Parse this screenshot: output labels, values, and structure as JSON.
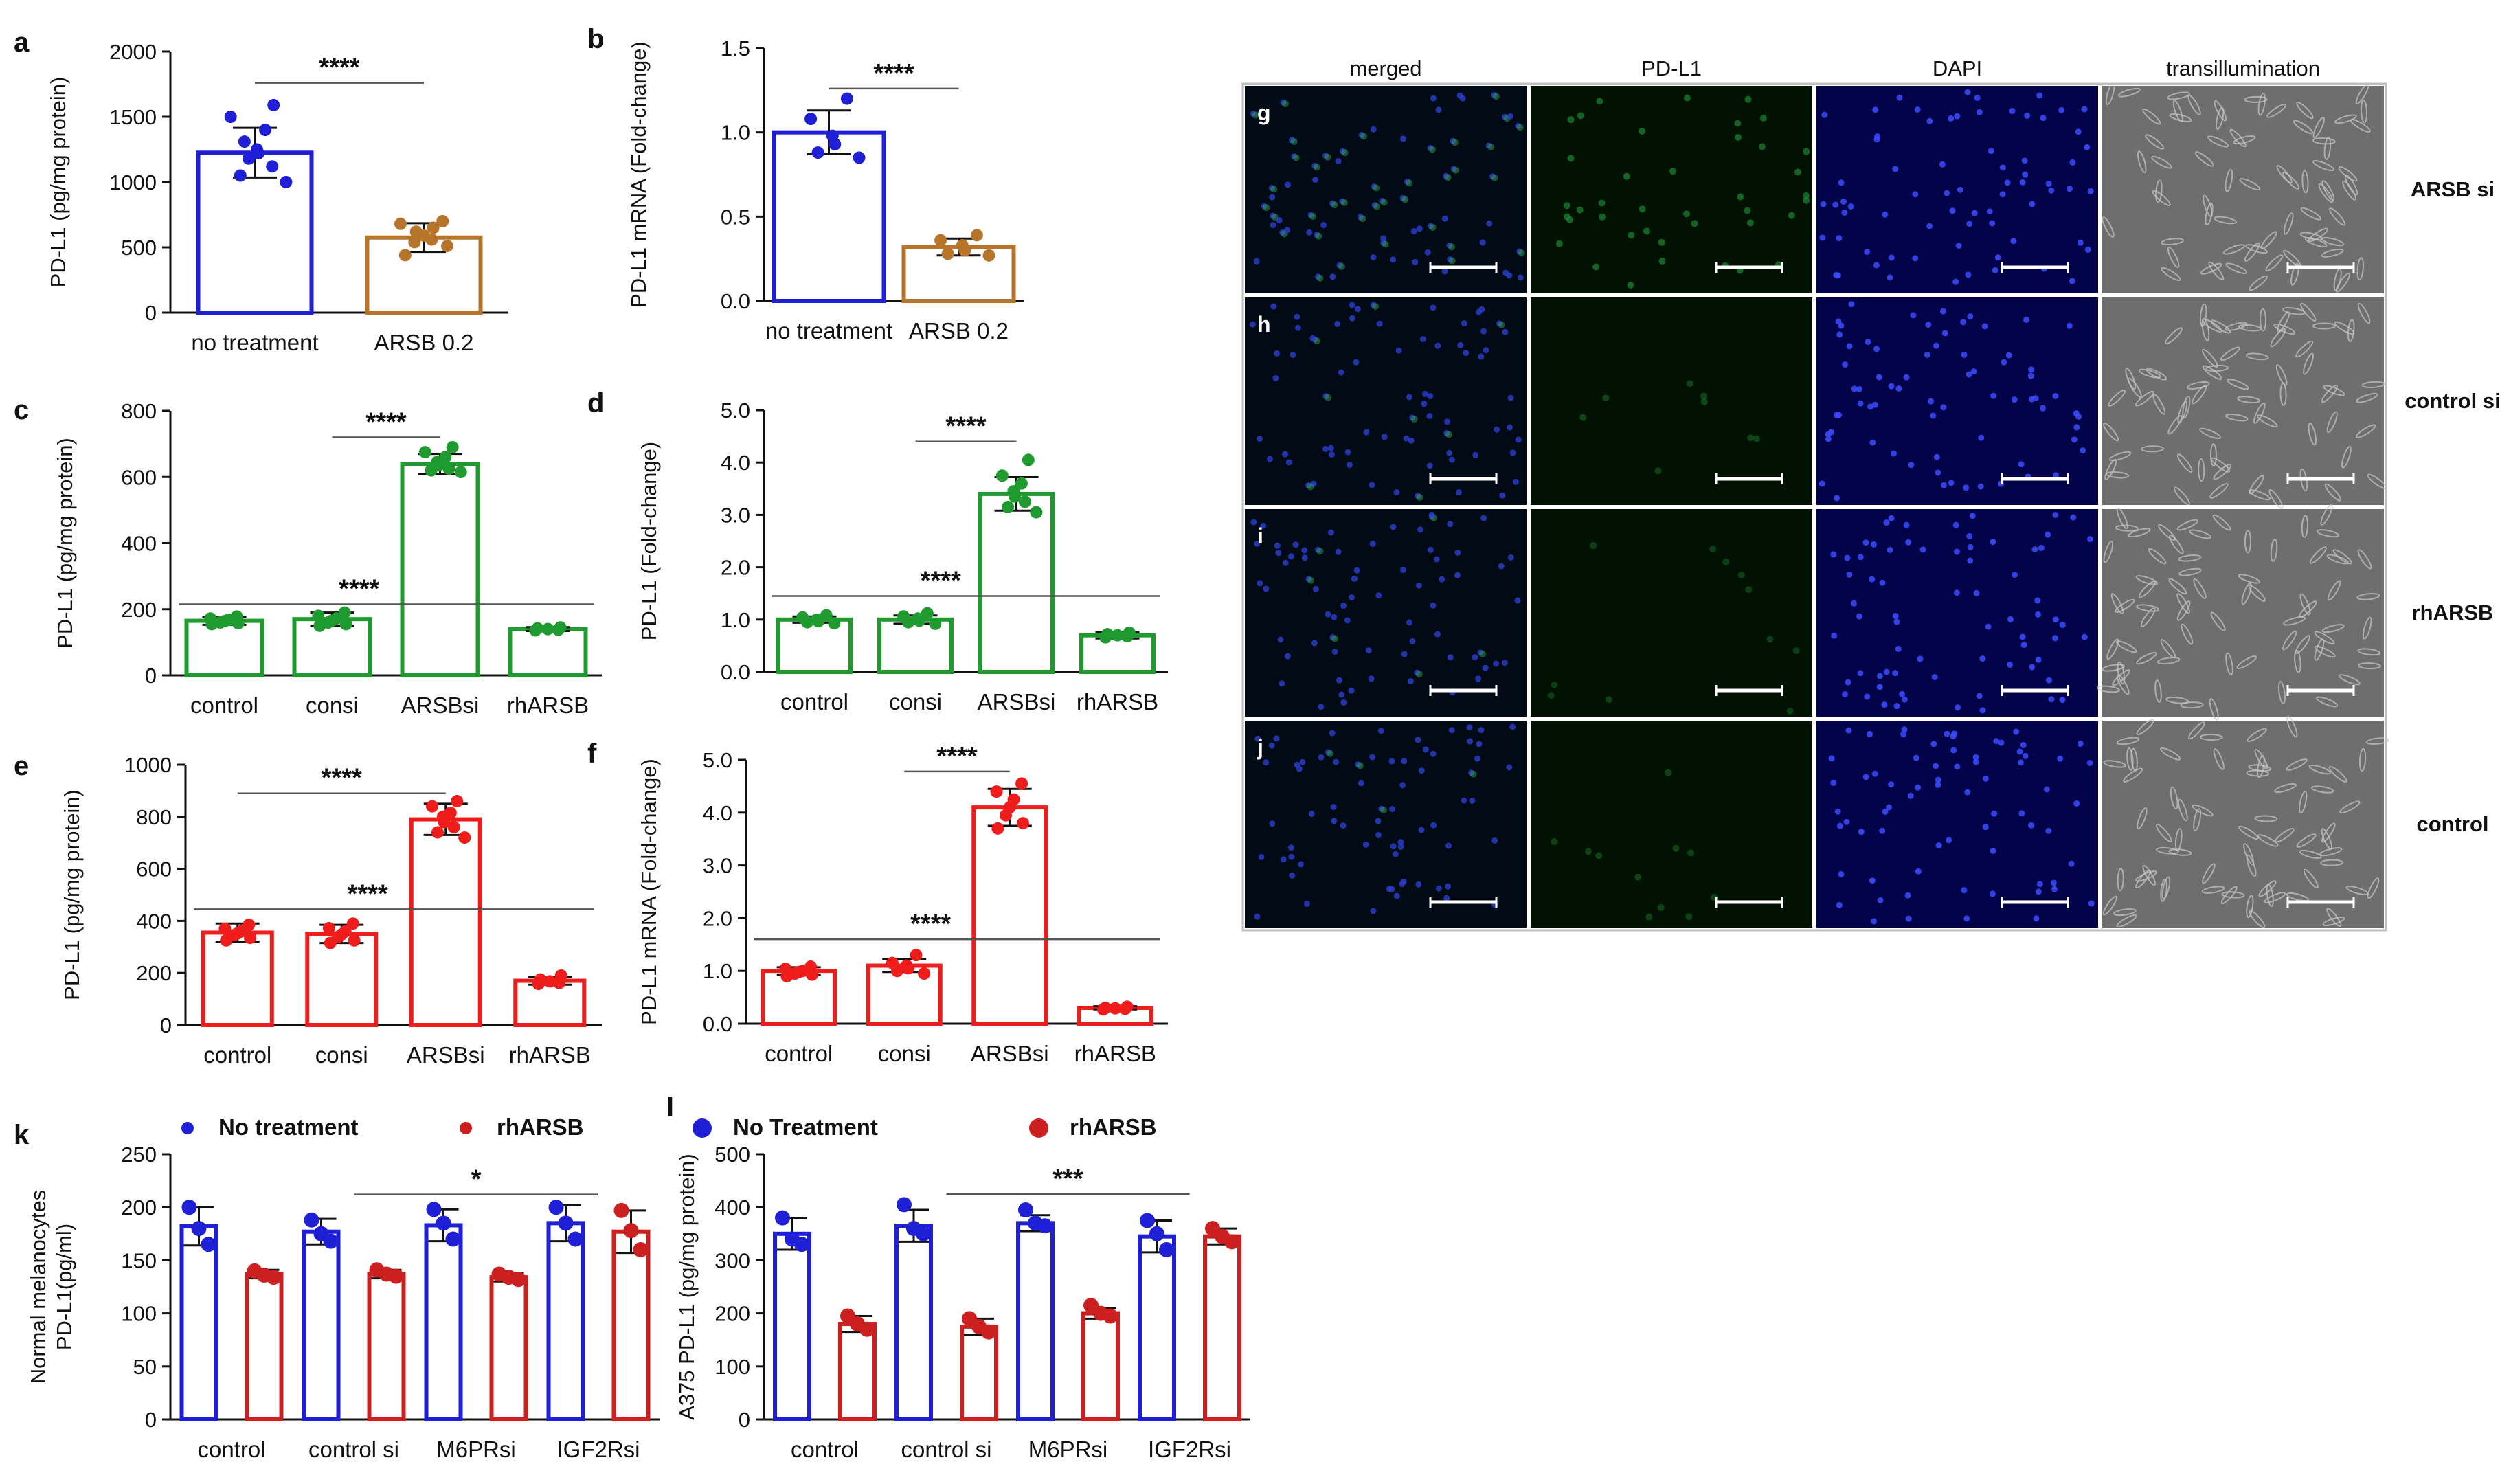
{
  "figure": {
    "image_panels": {
      "column_headers": [
        "merged",
        "PD-L1",
        "DAPI",
        "transillumination"
      ],
      "rows": [
        {
          "letter": "g",
          "label": "ARSB si",
          "pdl1_intensity": 0.55
        },
        {
          "letter": "h",
          "label": "control si",
          "pdl1_intensity": 0.12
        },
        {
          "letter": "i",
          "label": "rhARSB",
          "pdl1_intensity": 0.05
        },
        {
          "letter": "j",
          "label": "control",
          "pdl1_intensity": 0.1
        }
      ]
    }
  },
  "chart_data": [
    {
      "panel": "a",
      "type": "bar",
      "categories": [
        "no treatment",
        "ARSB 0.2"
      ],
      "values": [
        1225,
        575
      ],
      "sd": [
        190,
        110
      ],
      "points": [
        [
          1590,
          1500,
          1400,
          1310,
          1250,
          1220,
          1180,
          1120,
          1050,
          1000
        ],
        [
          700,
          680,
          650,
          620,
          590,
          560,
          540,
          510,
          440
        ]
      ],
      "colors": [
        "#1f1fd6",
        "#b7742b"
      ],
      "ylabel": "PD-L1 (pg/mg protein)",
      "ylim": [
        0,
        2000
      ],
      "yticks": [
        0,
        500,
        1000,
        1500,
        2000
      ],
      "significance": [
        {
          "from": 0,
          "to": 1,
          "label": "****",
          "y": 1760
        }
      ]
    },
    {
      "panel": "b",
      "type": "bar",
      "categories": [
        "no treatment",
        "ARSB 0.2"
      ],
      "values": [
        1.0,
        0.32
      ],
      "sd": [
        0.13,
        0.05
      ],
      "points": [
        [
          1.2,
          1.08,
          0.98,
          0.93,
          0.88,
          0.85
        ],
        [
          0.39,
          0.36,
          0.33,
          0.3,
          0.28,
          0.27
        ]
      ],
      "colors": [
        "#1f1fd6",
        "#b7742b"
      ],
      "ylabel": "PD-L1 mRNA (Fold-change)",
      "ylim": [
        0,
        1.5
      ],
      "yticks": [
        "0.0",
        "0.5",
        "1.0",
        "1.5"
      ],
      "significance": [
        {
          "from": 0,
          "to": 1,
          "label": "****",
          "y": 1.26
        }
      ]
    },
    {
      "panel": "c",
      "type": "bar",
      "categories": [
        "control",
        "consi",
        "ARSBsi",
        "rhARSB"
      ],
      "values": [
        165,
        170,
        640,
        140
      ],
      "sd": [
        12,
        20,
        30,
        6
      ],
      "points": [
        [
          178,
          172,
          168,
          164,
          160,
          158,
          155
        ],
        [
          190,
          180,
          172,
          166,
          160,
          155,
          150
        ],
        [
          690,
          675,
          660,
          645,
          635,
          625,
          620,
          615
        ],
        [
          145,
          142,
          140,
          138,
          136
        ]
      ],
      "colors": [
        "#1f9a2e",
        "#1f9a2e",
        "#1f9a2e",
        "#1f9a2e"
      ],
      "ylabel": "PD-L1 (pg/mg protein)",
      "ylim": [
        0,
        800
      ],
      "yticks": [
        0,
        200,
        400,
        600,
        800
      ],
      "significance": [
        {
          "from": 1,
          "to": 2,
          "label": "****",
          "y": 720
        },
        {
          "from": 0,
          "to": 3,
          "label": "****",
          "y": 215,
          "style": "line"
        }
      ]
    },
    {
      "panel": "d",
      "type": "bar",
      "categories": [
        "control",
        "consi",
        "ARSBsi",
        "rhARSB"
      ],
      "values": [
        1.0,
        1.0,
        3.4,
        0.7
      ],
      "sd": [
        0.06,
        0.08,
        0.32,
        0.06
      ],
      "points": [
        [
          1.08,
          1.04,
          1.0,
          0.97,
          0.95,
          0.93
        ],
        [
          1.12,
          1.06,
          1.02,
          0.98,
          0.95,
          0.92
        ],
        [
          4.05,
          3.75,
          3.6,
          3.45,
          3.35,
          3.25,
          3.15,
          3.05
        ],
        [
          0.75,
          0.72,
          0.7,
          0.68,
          0.66
        ]
      ],
      "colors": [
        "#1f9a2e",
        "#1f9a2e",
        "#1f9a2e",
        "#1f9a2e"
      ],
      "ylabel": "PD-L1 (Fold-change)",
      "ylim": [
        0,
        5.0
      ],
      "yticks": [
        "0.0",
        "1.0",
        "2.0",
        "3.0",
        "4.0",
        "5.0"
      ],
      "significance": [
        {
          "from": 1,
          "to": 2,
          "label": "****",
          "y": 4.4
        },
        {
          "from": 0,
          "to": 3,
          "label": "****",
          "y": 1.45,
          "style": "line"
        }
      ]
    },
    {
      "panel": "e",
      "type": "bar",
      "categories": [
        "control",
        "consi",
        "ARSBsi",
        "rhARSB"
      ],
      "values": [
        355,
        350,
        790,
        170
      ],
      "sd": [
        35,
        35,
        60,
        15
      ],
      "points": [
        [
          385,
          370,
          360,
          352,
          345,
          335,
          325
        ],
        [
          390,
          372,
          360,
          348,
          338,
          325,
          315
        ],
        [
          860,
          840,
          815,
          800,
          780,
          760,
          740,
          720
        ],
        [
          190,
          175,
          168,
          162,
          158
        ]
      ],
      "colors": [
        "#ef1c1c",
        "#ef1c1c",
        "#ef1c1c",
        "#ef1c1c"
      ],
      "ylabel": "PD-L1 (pg/mg protein)",
      "ylim": [
        0,
        1000
      ],
      "yticks": [
        0,
        200,
        400,
        600,
        800,
        1000
      ],
      "significance": [
        {
          "from": 0,
          "to": 2,
          "label": "****",
          "y": 890
        },
        {
          "from": 0,
          "to": 3,
          "label": "****",
          "y": 445,
          "style": "line"
        }
      ]
    },
    {
      "panel": "f",
      "type": "bar",
      "categories": [
        "control",
        "consi",
        "ARSBsi",
        "rhARSB"
      ],
      "values": [
        1.0,
        1.1,
        4.1,
        0.3
      ],
      "sd": [
        0.07,
        0.12,
        0.35,
        0.03
      ],
      "points": [
        [
          1.08,
          1.04,
          1.0,
          0.98,
          0.95,
          0.93,
          0.9
        ],
        [
          1.3,
          1.15,
          1.1,
          1.05,
          1.0,
          0.95
        ],
        [
          4.55,
          4.4,
          4.25,
          4.1,
          3.95,
          3.8,
          3.7
        ],
        [
          0.32,
          0.3,
          0.29,
          0.28,
          0.27
        ]
      ],
      "colors": [
        "#ef1c1c",
        "#ef1c1c",
        "#ef1c1c",
        "#ef1c1c"
      ],
      "ylabel": "PD-L1 mRNA (Fold-change)",
      "ylim": [
        0,
        5.0
      ],
      "yticks": [
        "0.0",
        "1.0",
        "2.0",
        "3.0",
        "4.0",
        "5.0"
      ],
      "significance": [
        {
          "from": 1,
          "to": 2,
          "label": "****",
          "y": 4.78
        },
        {
          "from": 0,
          "to": 3,
          "label": "****",
          "y": 1.6,
          "style": "line"
        }
      ]
    },
    {
      "panel": "k",
      "type": "bar",
      "categories": [
        "control",
        "control si",
        "M6PRsi",
        "IGF2Rsi"
      ],
      "series": [
        {
          "name": "No treatment",
          "color": "#1f1fd6",
          "values": [
            182,
            177,
            183,
            185
          ],
          "sd": [
            18,
            12,
            15,
            17
          ],
          "points": [
            [
              200,
              180,
              165
            ],
            [
              188,
              175,
              168
            ],
            [
              198,
              185,
              170
            ],
            [
              200,
              185,
              170
            ]
          ]
        },
        {
          "name": "rhARSB",
          "color": "#cc1f1f",
          "values": [
            137,
            137,
            134,
            177
          ],
          "sd": [
            4,
            4,
            4,
            20
          ],
          "points": [
            [
              140,
              136,
              134
            ],
            [
              141,
              137,
              135
            ],
            [
              137,
              134,
              132
            ],
            [
              197,
              178,
              160
            ]
          ]
        }
      ],
      "ylabel": "Normal melanocytes\nPD-L1(pg/ml)",
      "ylim": [
        0,
        250
      ],
      "yticks": [
        0,
        50,
        100,
        150,
        200,
        250
      ],
      "significance": [
        {
          "from": 1,
          "to": 3,
          "label": "*",
          "y": 212
        }
      ]
    },
    {
      "panel": "l",
      "type": "bar",
      "categories": [
        "control",
        "control si",
        "M6PRsi",
        "IGF2Rsi"
      ],
      "series": [
        {
          "name": "No Treatment",
          "color": "#1f1fd6",
          "values": [
            350,
            365,
            370,
            345
          ],
          "sd": [
            30,
            30,
            15,
            30
          ],
          "points": [
            [
              380,
              340,
              330
            ],
            [
              405,
              360,
              350
            ],
            [
              395,
              370,
              365
            ],
            [
              375,
              350,
              320
            ]
          ]
        },
        {
          "name": "rhARSB",
          "color": "#cc1f1f",
          "values": [
            180,
            175,
            200,
            345
          ],
          "sd": [
            15,
            15,
            10,
            15
          ],
          "points": [
            [
              195,
              180,
              170
            ],
            [
              190,
              175,
              165
            ],
            [
              215,
              200,
              195
            ],
            [
              360,
              345,
              335
            ]
          ]
        }
      ],
      "ylabel": "A375 PD-L1 (pg/mg protein)",
      "ylim": [
        0,
        500
      ],
      "yticks": [
        0,
        100,
        200,
        300,
        400,
        500
      ],
      "significance": [
        {
          "from": 1,
          "to": 3,
          "label": "***",
          "y": 425
        }
      ]
    }
  ]
}
